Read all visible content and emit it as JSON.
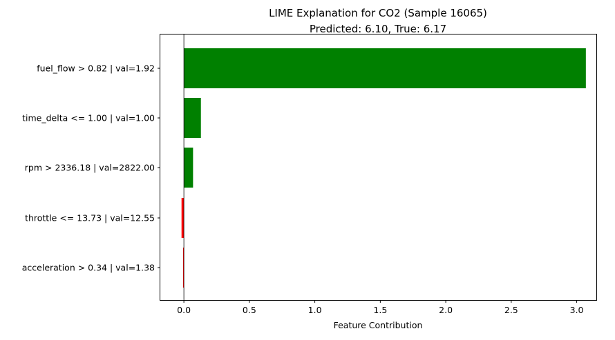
{
  "chart_data": {
    "type": "bar",
    "orientation": "horizontal",
    "title_line1": "LIME Explanation for CO2 (Sample 16065)",
    "title_line2": "Predicted: 6.10, True: 6.17",
    "xlabel": "Feature Contribution",
    "ylabel": "",
    "xlim": [
      -0.18,
      3.15
    ],
    "xticks": [
      0.0,
      0.5,
      1.0,
      1.5,
      2.0,
      2.5,
      3.0
    ],
    "xtick_labels": [
      "0.0",
      "0.5",
      "1.0",
      "1.5",
      "2.0",
      "2.5",
      "3.0"
    ],
    "grid": false,
    "legend": "none",
    "zero_line": true,
    "categories": [
      "fuel_flow > 0.82 | val=1.92",
      "time_delta <= 1.00 | val=1.00",
      "rpm > 2336.18 | val=2822.00",
      "throttle <= 13.73 | val=12.55",
      "acceleration > 0.34 | val=1.38"
    ],
    "values": [
      3.07,
      0.13,
      0.07,
      -0.018,
      -0.006
    ],
    "colors": {
      "positive": "#008000",
      "negative": "#ff0000",
      "zero_line": "#000000",
      "axis": "#000000"
    }
  }
}
